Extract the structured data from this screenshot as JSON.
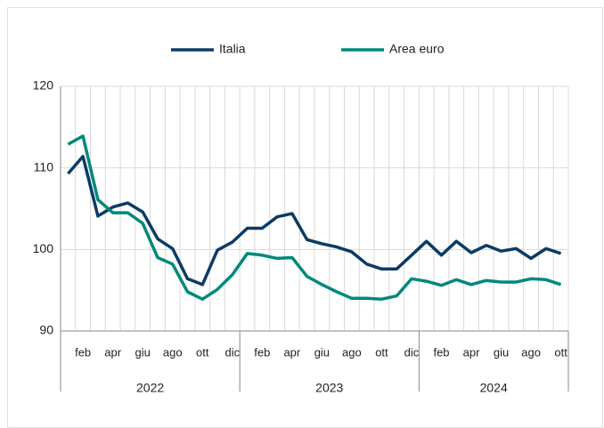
{
  "chart_data": {
    "type": "line",
    "categories": [
      null,
      "feb",
      null,
      "apr",
      null,
      "giu",
      null,
      "ago",
      null,
      "ott",
      null,
      "dic",
      null,
      "feb",
      null,
      "apr",
      null,
      "giu",
      null,
      "ago",
      null,
      "ott",
      null,
      "dic",
      null,
      "feb",
      null,
      "apr",
      null,
      "giu",
      null,
      "ago",
      null,
      "ott"
    ],
    "year_labels": [
      "2022",
      "2023",
      "2024"
    ],
    "series": [
      {
        "name": "Italia",
        "color": "#0b3b66",
        "values": [
          109.3,
          111.4,
          104.1,
          105.2,
          105.7,
          104.6,
          101.3,
          100.1,
          96.4,
          95.7,
          99.9,
          100.9,
          102.6,
          102.6,
          104.0,
          104.4,
          101.2,
          100.7,
          100.3,
          99.7,
          98.2,
          97.6,
          97.6,
          99.3,
          101.0,
          99.3,
          101.0,
          99.6,
          100.5,
          99.8,
          100.1,
          98.9,
          100.1,
          99.5
        ]
      },
      {
        "name": "Area euro",
        "color": "#00897b",
        "values": [
          112.9,
          113.9,
          106.1,
          104.5,
          104.5,
          103.2,
          99.0,
          98.2,
          94.8,
          93.9,
          95.1,
          96.9,
          99.5,
          99.3,
          98.9,
          99.0,
          96.7,
          95.7,
          94.8,
          94.0,
          94.0,
          93.9,
          94.3,
          96.4,
          96.1,
          95.6,
          96.3,
          95.7,
          96.2,
          96.0,
          96.0,
          96.4,
          96.3,
          95.7
        ]
      }
    ],
    "ylim": [
      90,
      120
    ],
    "yticks": [
      90,
      100,
      110,
      120
    ],
    "grid": true
  }
}
